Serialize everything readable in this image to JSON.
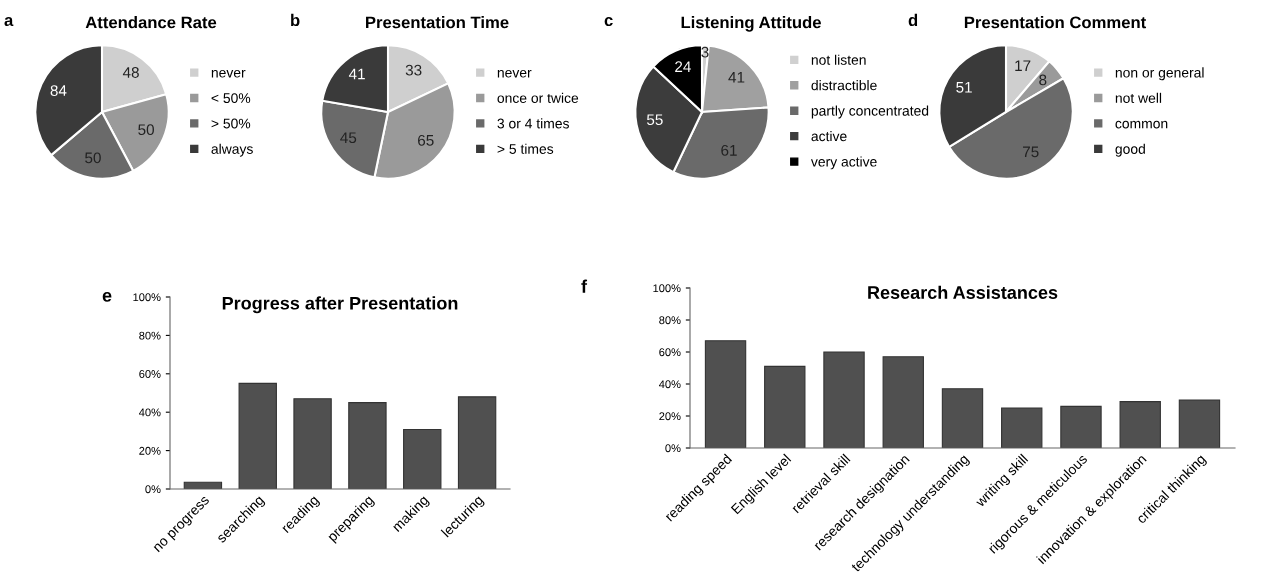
{
  "chart_data": [
    {
      "type": "pie",
      "title": "Attendance Rate",
      "annotations": [
        "a"
      ],
      "categories": [
        "never",
        "< 50%",
        "> 50%",
        "always"
      ],
      "values": [
        48,
        50,
        50,
        84
      ],
      "colors": [
        "#cfcfcf",
        "#9a9a9a",
        "#6a6a6a",
        "#3a3a3a"
      ],
      "data_labels": true,
      "legend": "right"
    },
    {
      "type": "pie",
      "title": "Presentation Time",
      "annotations": [
        "b"
      ],
      "categories": [
        "never",
        "once or twice",
        "3 or 4 times",
        "> 5 times"
      ],
      "values": [
        33,
        65,
        45,
        41
      ],
      "colors": [
        "#cfcfcf",
        "#9a9a9a",
        "#6a6a6a",
        "#3a3a3a"
      ],
      "data_labels": true,
      "legend": "right"
    },
    {
      "type": "pie",
      "title": "Listening Attitude",
      "annotations": [
        "c"
      ],
      "categories": [
        "not listen",
        "distractible",
        "partly concentrated",
        "active",
        "very active"
      ],
      "values": [
        3,
        41,
        61,
        55,
        24
      ],
      "colors": [
        "#d0d0d0",
        "#a0a0a0",
        "#6a6a6a",
        "#3c3c3c",
        "#000000"
      ],
      "data_labels": true,
      "legend": "right"
    },
    {
      "type": "pie",
      "title": "Presentation Comment",
      "annotations": [
        "d"
      ],
      "categories": [
        "non or general",
        "not well",
        "common",
        "good"
      ],
      "values": [
        17,
        8,
        75,
        51
      ],
      "colors": [
        "#cfcfcf",
        "#9a9a9a",
        "#6a6a6a",
        "#3a3a3a"
      ],
      "data_labels": true,
      "legend": "right"
    },
    {
      "type": "bar",
      "title": "Progress after Presentation",
      "annotations": [
        "e"
      ],
      "categories": [
        "no progress",
        "searching",
        "reading",
        "preparing",
        "making",
        "lecturing"
      ],
      "values": [
        3.5,
        55,
        47,
        45,
        31,
        48
      ],
      "color": "#505050",
      "ylim": [
        0,
        100
      ],
      "yticks": [
        {
          "value": 0,
          "label": "0%"
        },
        {
          "value": 20,
          "label": "20%"
        },
        {
          "value": 40,
          "label": "40%"
        },
        {
          "value": 60,
          "label": "60%"
        },
        {
          "value": 80,
          "label": "80%"
        },
        {
          "value": 100,
          "label": "100%"
        }
      ],
      "grid": false
    },
    {
      "type": "bar",
      "title": "Research Assistances",
      "annotations": [
        "f"
      ],
      "categories": [
        "reading speed",
        "English level",
        "retrieval skill",
        "research designation",
        "technology understanding",
        "writing skill",
        "rigorous & meticulous",
        "innovation & exploration",
        "critical thinking"
      ],
      "values": [
        67,
        51,
        60,
        57,
        37,
        25,
        26,
        29,
        30
      ],
      "color": "#505050",
      "ylim": [
        0,
        100
      ],
      "yticks": [
        {
          "value": 0,
          "label": "0%"
        },
        {
          "value": 20,
          "label": "20%"
        },
        {
          "value": 40,
          "label": "40%"
        },
        {
          "value": 60,
          "label": "60%"
        },
        {
          "value": 80,
          "label": "80%"
        },
        {
          "value": 100,
          "label": "100%"
        }
      ],
      "grid": false
    }
  ]
}
